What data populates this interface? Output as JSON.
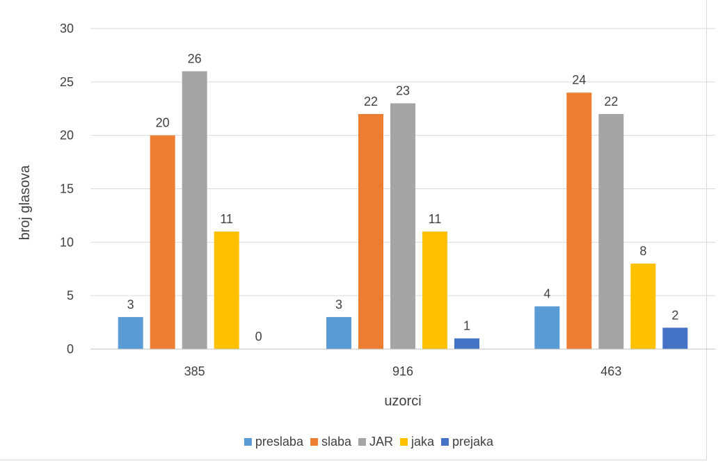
{
  "chart_data": {
    "type": "bar",
    "title": "",
    "xlabel": "uzorci",
    "ylabel": "broj glasova",
    "categories": [
      "385",
      "916",
      "463"
    ],
    "ylim": [
      0,
      30
    ],
    "yticks": [
      0,
      5,
      10,
      15,
      20,
      25,
      30
    ],
    "grid": true,
    "legend_position": "bottom",
    "series": [
      {
        "name": "preslaba",
        "color": "#5B9BD5",
        "values": [
          3,
          3,
          4
        ]
      },
      {
        "name": "slaba",
        "color": "#ED7D31",
        "values": [
          20,
          22,
          24
        ]
      },
      {
        "name": "JAR",
        "color": "#A5A5A5",
        "values": [
          26,
          23,
          22
        ]
      },
      {
        "name": "jaka",
        "color": "#FFC000",
        "values": [
          11,
          11,
          8
        ]
      },
      {
        "name": "prejaka",
        "color": "#4472C4",
        "values": [
          0,
          1,
          2
        ]
      }
    ]
  }
}
